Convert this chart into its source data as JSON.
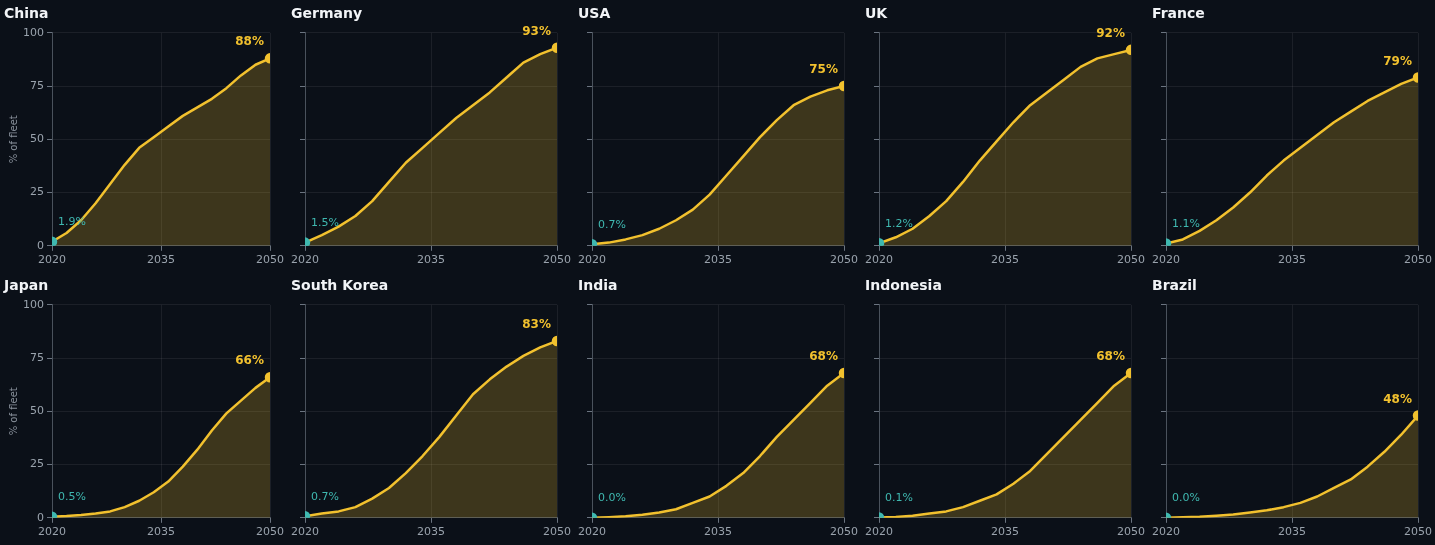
{
  "chart_data": [
    {
      "type": "area",
      "title": "China",
      "ylabel": "% of fleet",
      "x": [
        2020,
        2022,
        2024,
        2026,
        2028,
        2030,
        2032,
        2034,
        2036,
        2038,
        2040,
        2042,
        2044,
        2046,
        2048,
        2050
      ],
      "series": [
        {
          "color": "#f2c12e",
          "values": [
            1.9,
            6,
            12,
            20,
            29,
            38,
            46,
            51,
            56,
            61,
            65,
            69,
            74,
            80,
            85,
            88
          ],
          "value_labels": [
            "1.9%",
            null,
            null,
            null,
            null,
            null,
            null,
            null,
            null,
            null,
            null,
            null,
            null,
            null,
            null,
            "88%"
          ]
        }
      ],
      "xlim": [
        2020,
        2050
      ],
      "xticks": [
        2020,
        2035,
        2050
      ],
      "ylim": [
        0,
        100
      ],
      "yticks": [
        0,
        25,
        50,
        75,
        100
      ],
      "grid": true
    },
    {
      "type": "area",
      "title": "Germany",
      "x": [
        2020,
        2022,
        2024,
        2026,
        2028,
        2030,
        2032,
        2034,
        2036,
        2038,
        2040,
        2042,
        2044,
        2046,
        2048,
        2050
      ],
      "series": [
        {
          "color": "#f2c12e",
          "values": [
            1.5,
            5,
            9,
            14,
            21,
            30,
            39,
            46,
            53,
            60,
            66,
            72,
            79,
            86,
            90,
            93
          ],
          "value_labels": [
            "1.5%",
            null,
            null,
            null,
            null,
            null,
            null,
            null,
            null,
            null,
            null,
            null,
            null,
            null,
            null,
            "93%"
          ]
        }
      ],
      "xlim": [
        2020,
        2050
      ],
      "xticks": [
        2020,
        2035,
        2050
      ],
      "ylim": [
        0,
        100
      ],
      "yticks": [
        0,
        25,
        50,
        75,
        100
      ],
      "tick_labels": "x",
      "grid": true
    },
    {
      "type": "area",
      "title": "USA",
      "x": [
        2020,
        2022,
        2024,
        2026,
        2028,
        2030,
        2032,
        2034,
        2036,
        2038,
        2040,
        2042,
        2044,
        2046,
        2048,
        2050
      ],
      "series": [
        {
          "color": "#f2c12e",
          "values": [
            0.7,
            1.5,
            3,
            5,
            8,
            12,
            17,
            24,
            33,
            42,
            51,
            59,
            66,
            70,
            73,
            75
          ],
          "value_labels": [
            "0.7%",
            null,
            null,
            null,
            null,
            null,
            null,
            null,
            null,
            null,
            null,
            null,
            null,
            null,
            null,
            "75%"
          ]
        }
      ],
      "xlim": [
        2020,
        2050
      ],
      "xticks": [
        2020,
        2035,
        2050
      ],
      "ylim": [
        0,
        100
      ],
      "yticks": [
        0,
        25,
        50,
        75,
        100
      ],
      "tick_labels": "x",
      "grid": true
    },
    {
      "type": "area",
      "title": "UK",
      "x": [
        2020,
        2022,
        2024,
        2026,
        2028,
        2030,
        2032,
        2034,
        2036,
        2038,
        2040,
        2042,
        2044,
        2046,
        2048,
        2050
      ],
      "series": [
        {
          "color": "#f2c12e",
          "values": [
            1.2,
            4,
            8,
            14,
            21,
            30,
            40,
            49,
            58,
            66,
            72,
            78,
            84,
            88,
            90,
            92
          ],
          "value_labels": [
            "1.2%",
            null,
            null,
            null,
            null,
            null,
            null,
            null,
            null,
            null,
            null,
            null,
            null,
            null,
            null,
            "92%"
          ]
        }
      ],
      "xlim": [
        2020,
        2050
      ],
      "xticks": [
        2020,
        2035,
        2050
      ],
      "ylim": [
        0,
        100
      ],
      "yticks": [
        0,
        25,
        50,
        75,
        100
      ],
      "tick_labels": "x",
      "grid": true
    },
    {
      "type": "area",
      "title": "France",
      "x": [
        2020,
        2022,
        2024,
        2026,
        2028,
        2030,
        2032,
        2034,
        2036,
        2038,
        2040,
        2042,
        2044,
        2046,
        2048,
        2050
      ],
      "series": [
        {
          "color": "#f2c12e",
          "values": [
            1.1,
            3,
            7,
            12,
            18,
            25,
            33,
            40,
            46,
            52,
            58,
            63,
            68,
            72,
            76,
            79
          ],
          "value_labels": [
            "1.1%",
            null,
            null,
            null,
            null,
            null,
            null,
            null,
            null,
            null,
            null,
            null,
            null,
            null,
            null,
            "79%"
          ]
        }
      ],
      "xlim": [
        2020,
        2050
      ],
      "xticks": [
        2020,
        2035,
        2050
      ],
      "ylim": [
        0,
        100
      ],
      "yticks": [
        0,
        25,
        50,
        75,
        100
      ],
      "tick_labels": "x",
      "grid": true
    },
    {
      "type": "area",
      "title": "Japan",
      "ylabel": "% of fleet",
      "x": [
        2020,
        2022,
        2024,
        2026,
        2028,
        2030,
        2032,
        2034,
        2036,
        2038,
        2040,
        2042,
        2044,
        2046,
        2048,
        2050
      ],
      "series": [
        {
          "color": "#f2c12e",
          "values": [
            0.5,
            0.8,
            1.3,
            2,
            3,
            5,
            8,
            12,
            17,
            24,
            32,
            41,
            49,
            55,
            61,
            66
          ],
          "value_labels": [
            "0.5%",
            null,
            null,
            null,
            null,
            null,
            null,
            null,
            null,
            null,
            null,
            null,
            null,
            null,
            null,
            "66%"
          ]
        }
      ],
      "xlim": [
        2020,
        2050
      ],
      "xticks": [
        2020,
        2035,
        2050
      ],
      "ylim": [
        0,
        100
      ],
      "yticks": [
        0,
        25,
        50,
        75,
        100
      ],
      "grid": true
    },
    {
      "type": "area",
      "title": "South Korea",
      "x": [
        2020,
        2022,
        2024,
        2026,
        2028,
        2030,
        2032,
        2034,
        2036,
        2038,
        2040,
        2042,
        2044,
        2046,
        2048,
        2050
      ],
      "series": [
        {
          "color": "#f2c12e",
          "values": [
            0.7,
            2,
            3,
            5,
            9,
            14,
            21,
            29,
            38,
            48,
            58,
            65,
            71,
            76,
            80,
            83
          ],
          "value_labels": [
            "0.7%",
            null,
            null,
            null,
            null,
            null,
            null,
            null,
            null,
            null,
            null,
            null,
            null,
            null,
            null,
            "83%"
          ]
        }
      ],
      "xlim": [
        2020,
        2050
      ],
      "xticks": [
        2020,
        2035,
        2050
      ],
      "ylim": [
        0,
        100
      ],
      "yticks": [
        0,
        25,
        50,
        75,
        100
      ],
      "tick_labels": "x",
      "grid": true
    },
    {
      "type": "area",
      "title": "India",
      "x": [
        2020,
        2022,
        2024,
        2026,
        2028,
        2030,
        2032,
        2034,
        2036,
        2038,
        2040,
        2042,
        2044,
        2046,
        2048,
        2050
      ],
      "series": [
        {
          "color": "#f2c12e",
          "values": [
            0,
            0.3,
            0.7,
            1.4,
            2.5,
            4,
            7,
            10,
            15,
            21,
            29,
            38,
            46,
            54,
            62,
            68
          ],
          "value_labels": [
            "0.0%",
            null,
            null,
            null,
            null,
            null,
            null,
            null,
            null,
            null,
            null,
            null,
            null,
            null,
            null,
            "68%"
          ]
        }
      ],
      "xlim": [
        2020,
        2050
      ],
      "xticks": [
        2020,
        2035,
        2050
      ],
      "ylim": [
        0,
        100
      ],
      "yticks": [
        0,
        25,
        50,
        75,
        100
      ],
      "tick_labels": "x",
      "grid": true
    },
    {
      "type": "area",
      "title": "Indonesia",
      "x": [
        2020,
        2022,
        2024,
        2026,
        2028,
        2030,
        2032,
        2034,
        2036,
        2038,
        2040,
        2042,
        2044,
        2046,
        2048,
        2050
      ],
      "series": [
        {
          "color": "#f2c12e",
          "values": [
            0.1,
            0.4,
            1,
            2,
            3,
            5,
            8,
            11,
            16,
            22,
            30,
            38,
            46,
            54,
            62,
            68
          ],
          "value_labels": [
            "0.1%",
            null,
            null,
            null,
            null,
            null,
            null,
            null,
            null,
            null,
            null,
            null,
            null,
            null,
            null,
            "68%"
          ]
        }
      ],
      "xlim": [
        2020,
        2050
      ],
      "xticks": [
        2020,
        2035,
        2050
      ],
      "ylim": [
        0,
        100
      ],
      "yticks": [
        0,
        25,
        50,
        75,
        100
      ],
      "tick_labels": "x",
      "grid": true
    },
    {
      "type": "area",
      "title": "Brazil",
      "x": [
        2020,
        2022,
        2024,
        2026,
        2028,
        2030,
        2032,
        2034,
        2036,
        2038,
        2040,
        2042,
        2044,
        2046,
        2048,
        2050
      ],
      "series": [
        {
          "color": "#f2c12e",
          "values": [
            0,
            0.2,
            0.5,
            1,
            1.5,
            2.5,
            3.5,
            5,
            7,
            10,
            14,
            18,
            24,
            31,
            39,
            48
          ],
          "value_labels": [
            "0.0%",
            null,
            null,
            null,
            null,
            null,
            null,
            null,
            null,
            null,
            null,
            null,
            null,
            null,
            null,
            "48%"
          ]
        }
      ],
      "xlim": [
        2020,
        2050
      ],
      "xticks": [
        2020,
        2035,
        2050
      ],
      "ylim": [
        0,
        100
      ],
      "yticks": [
        0,
        25,
        50,
        75,
        100
      ],
      "tick_labels": "x",
      "grid": true
    }
  ]
}
